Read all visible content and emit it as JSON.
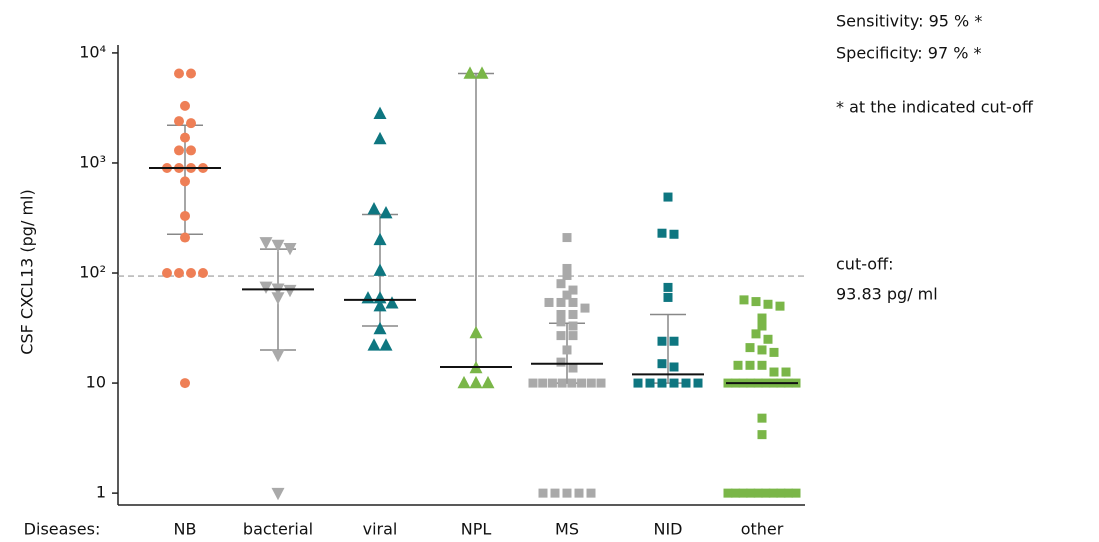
{
  "chart_data": {
    "type": "scatter",
    "y_label": "CSF CXCL13 (pg/ ml)",
    "x_label": "Diseases:",
    "log_y": true,
    "ylim": [
      0.78,
      11800
    ],
    "yticks": [
      1,
      10,
      {
        "value": 100,
        "label": "10²"
      },
      {
        "value": 1000,
        "label": "10³"
      },
      {
        "value": 10000,
        "label": "10⁴"
      }
    ],
    "cutoff": 93.83,
    "cutoff_label": [
      "cut-off:",
      "93.83 pg/ ml"
    ],
    "annotations": [
      "Sensitivity: 95 % *",
      "Specificity: 97 % *",
      "* at the indicated cut-off"
    ],
    "series": [
      {
        "name": "NB",
        "color": "#ee7f56",
        "marker": "circle",
        "values": [
          6500,
          6500,
          3300,
          2400,
          2300,
          1700,
          1300,
          1300,
          900,
          900,
          900,
          900,
          680,
          330,
          210,
          100,
          100,
          100,
          100,
          10
        ],
        "median": 900,
        "whisker": [
          225,
          2200
        ]
      },
      {
        "name": "bacterial",
        "color": "#a9a9a9",
        "marker": "triangle-down",
        "values": [
          190,
          180,
          168,
          75,
          72,
          70,
          60,
          18,
          1
        ],
        "median": 71,
        "whisker": [
          20,
          165
        ]
      },
      {
        "name": "viral",
        "color": "#0e7680",
        "marker": "triangle-up",
        "values": [
          2800,
          1650,
          380,
          350,
          200,
          105,
          59,
          59,
          53,
          50,
          31,
          22,
          22
        ],
        "median": 57,
        "whisker": [
          33,
          340
        ]
      },
      {
        "name": "NPL",
        "color": "#7ab648",
        "marker": "triangle-up",
        "values": [
          6500,
          6500,
          28.5,
          13.7,
          10,
          10,
          10
        ],
        "median": 14,
        "whisker": [
          14,
          6500
        ]
      },
      {
        "name": "MS",
        "color": "#a9a9a9",
        "marker": "square",
        "values": [
          210,
          110,
          95,
          80,
          70,
          63,
          54,
          54,
          54,
          48,
          42,
          42,
          36,
          33,
          27,
          27,
          20,
          15.5,
          13.7,
          10,
          10,
          10,
          10,
          10,
          10,
          10,
          10,
          1,
          1,
          1,
          1,
          1
        ],
        "median": 15,
        "whisker": [
          10,
          35
        ]
      },
      {
        "name": "NID",
        "color": "#0e7680",
        "marker": "square",
        "values": [
          490,
          225,
          230,
          74,
          60,
          24,
          24,
          15,
          14,
          10,
          10,
          10,
          10,
          10,
          10
        ],
        "median": 12,
        "whisker": [
          10,
          42
        ]
      },
      {
        "name": "other",
        "color": "#7ab648",
        "marker": "square",
        "values": [
          57,
          55,
          52,
          50,
          39,
          33,
          28,
          25,
          21,
          20,
          19,
          14.5,
          14.5,
          14.5,
          12.6,
          12.6,
          10,
          10,
          10,
          10,
          10,
          10,
          10,
          10,
          10,
          10,
          4.8,
          3.4,
          1,
          1,
          1,
          1,
          1,
          1,
          1,
          1,
          1,
          1
        ],
        "median": 10
      }
    ]
  }
}
